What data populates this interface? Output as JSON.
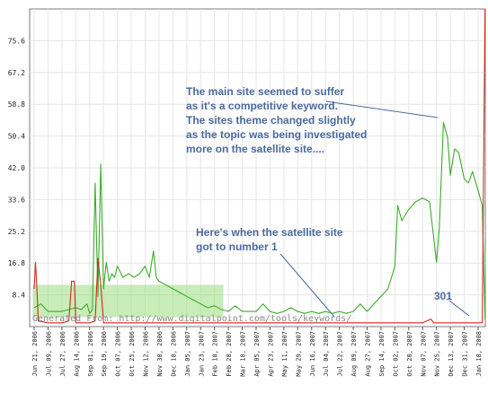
{
  "chart_data": {
    "type": "line",
    "ylim": [
      0,
      84
    ],
    "y_ticks": [
      "8.4",
      "16.8",
      "25.2",
      "33.6",
      "42.0",
      "50.4",
      "58.8",
      "67.2",
      "75.6"
    ],
    "x_ticks": [
      "Jun 21, 2006",
      "Jul 09, 2006",
      "Jul 27, 2006",
      "Aug 14, 2006",
      "Sep 01, 2006",
      "Sep 19, 2006",
      "Oct 07, 2006",
      "Oct 25, 2006",
      "Nov 12, 2006",
      "Nov 30, 2006",
      "Dec 18, 2006",
      "Jan 05, 2007",
      "Jan 23, 2007",
      "Feb 10, 2007",
      "Feb 28, 2007",
      "Mar 18, 2007",
      "Apr 05, 2007",
      "Apr 23, 2007",
      "May 11, 2007",
      "May 29, 2007",
      "Jun 16, 2007",
      "Jul 04, 2007",
      "Jul 22, 2007",
      "Aug 09, 2007",
      "Aug 27, 2007",
      "Sep 14, 2007",
      "Oct 02, 2007",
      "Oct 20, 2007",
      "Nov 07, 2007",
      "Nov 25, 2007",
      "Dec 13, 2007",
      "Dec 31, 2007",
      "Jan 18, 2008"
    ],
    "grid": true,
    "series": [
      {
        "color": "#3cac2a",
        "points": [
          [
            0,
            5
          ],
          [
            0.5,
            6
          ],
          [
            1,
            4
          ],
          [
            2,
            4
          ],
          [
            3,
            5
          ],
          [
            3.4,
            4.5
          ],
          [
            3.8,
            6
          ],
          [
            4,
            3.5
          ],
          [
            4.2,
            4.5
          ],
          [
            4.4,
            38
          ],
          [
            4.6,
            8
          ],
          [
            4.8,
            43
          ],
          [
            5,
            10
          ],
          [
            5.2,
            17
          ],
          [
            5.4,
            12
          ],
          [
            5.6,
            14
          ],
          [
            5.8,
            13
          ],
          [
            6,
            16
          ],
          [
            6.4,
            13
          ],
          [
            6.8,
            14
          ],
          [
            7.2,
            13
          ],
          [
            7.6,
            14
          ],
          [
            8,
            16
          ],
          [
            8.3,
            13
          ],
          [
            8.6,
            20
          ],
          [
            8.8,
            13
          ],
          [
            9,
            12
          ],
          [
            9.5,
            11
          ],
          [
            10,
            10
          ],
          [
            10.5,
            9
          ],
          [
            11,
            8
          ],
          [
            11.5,
            7
          ],
          [
            12,
            6
          ],
          [
            12.5,
            5
          ],
          [
            13,
            5.5
          ],
          [
            13.5,
            4.5
          ],
          [
            14,
            4
          ],
          [
            14.5,
            5.5
          ],
          [
            15,
            4
          ],
          [
            15.5,
            4
          ],
          [
            16,
            4
          ],
          [
            16.5,
            6
          ],
          [
            17,
            4
          ],
          [
            17.5,
            3.5
          ],
          [
            18,
            4
          ],
          [
            18.5,
            5
          ],
          [
            19,
            4
          ],
          [
            19.5,
            3.5
          ],
          [
            20,
            4
          ],
          [
            20.5,
            3.5
          ],
          [
            21,
            4
          ],
          [
            21.5,
            3.5
          ],
          [
            22,
            4
          ],
          [
            22.5,
            3.5
          ],
          [
            23,
            4
          ],
          [
            23.5,
            6
          ],
          [
            24,
            4
          ],
          [
            24.5,
            6
          ],
          [
            25,
            8
          ],
          [
            25.5,
            10
          ],
          [
            26,
            16
          ],
          [
            26.2,
            32
          ],
          [
            26.5,
            28
          ],
          [
            27,
            31
          ],
          [
            27.5,
            33
          ],
          [
            28,
            34
          ],
          [
            28.5,
            33
          ],
          [
            29,
            17
          ],
          [
            29.2,
            26
          ],
          [
            29.5,
            54
          ],
          [
            29.8,
            50
          ],
          [
            30,
            40
          ],
          [
            30.3,
            47
          ],
          [
            30.6,
            46
          ],
          [
            31,
            39
          ],
          [
            31.3,
            38
          ],
          [
            31.6,
            41
          ],
          [
            32,
            36
          ],
          [
            32.3,
            32
          ],
          [
            32.5,
            2
          ]
        ]
      },
      {
        "color": "#d12a20",
        "points": [
          [
            0,
            10
          ],
          [
            0.1,
            17
          ],
          [
            0.2,
            10
          ],
          [
            0.3,
            1.5
          ],
          [
            1,
            1
          ],
          [
            2,
            1
          ],
          [
            2.5,
            1.5
          ],
          [
            2.7,
            12
          ],
          [
            2.9,
            12
          ],
          [
            3,
            1
          ],
          [
            4,
            1
          ],
          [
            4.4,
            1.5
          ],
          [
            4.6,
            18
          ],
          [
            4.8,
            11
          ],
          [
            5,
            1
          ],
          [
            6,
            1
          ],
          [
            7,
            1
          ],
          [
            8,
            1
          ],
          [
            9,
            1
          ],
          [
            10,
            1
          ],
          [
            11,
            1
          ],
          [
            12,
            1
          ],
          [
            13,
            1
          ],
          [
            14,
            1
          ],
          [
            15,
            1
          ],
          [
            16,
            1
          ],
          [
            17,
            1
          ],
          [
            18,
            1
          ],
          [
            19,
            1
          ],
          [
            20,
            1
          ],
          [
            21,
            1
          ],
          [
            22,
            1
          ],
          [
            23,
            1
          ],
          [
            24,
            1
          ],
          [
            25,
            1
          ],
          [
            26,
            1
          ],
          [
            27,
            1
          ],
          [
            28,
            1
          ],
          [
            28.6,
            2
          ],
          [
            28.8,
            1
          ],
          [
            29,
            1
          ],
          [
            30,
            1
          ],
          [
            31,
            1
          ],
          [
            32,
            1
          ],
          [
            32.3,
            1
          ],
          [
            32.5,
            84
          ]
        ]
      }
    ],
    "annotations": [
      {
        "lines": [
          "The main site seemed to suffer",
          "as it's a competitive keyword.",
          "The sites theme changed slightly",
          "as the topic was being investigated",
          "more on the satellite site...."
        ]
      },
      {
        "lines": [
          "Here's when the satellite site",
          "got to number 1"
        ]
      },
      {
        "lines": [
          "301"
        ]
      }
    ]
  },
  "footer": {
    "generated": "Generated From:  http://www.digitalpoint.com/tools/keywords/"
  }
}
